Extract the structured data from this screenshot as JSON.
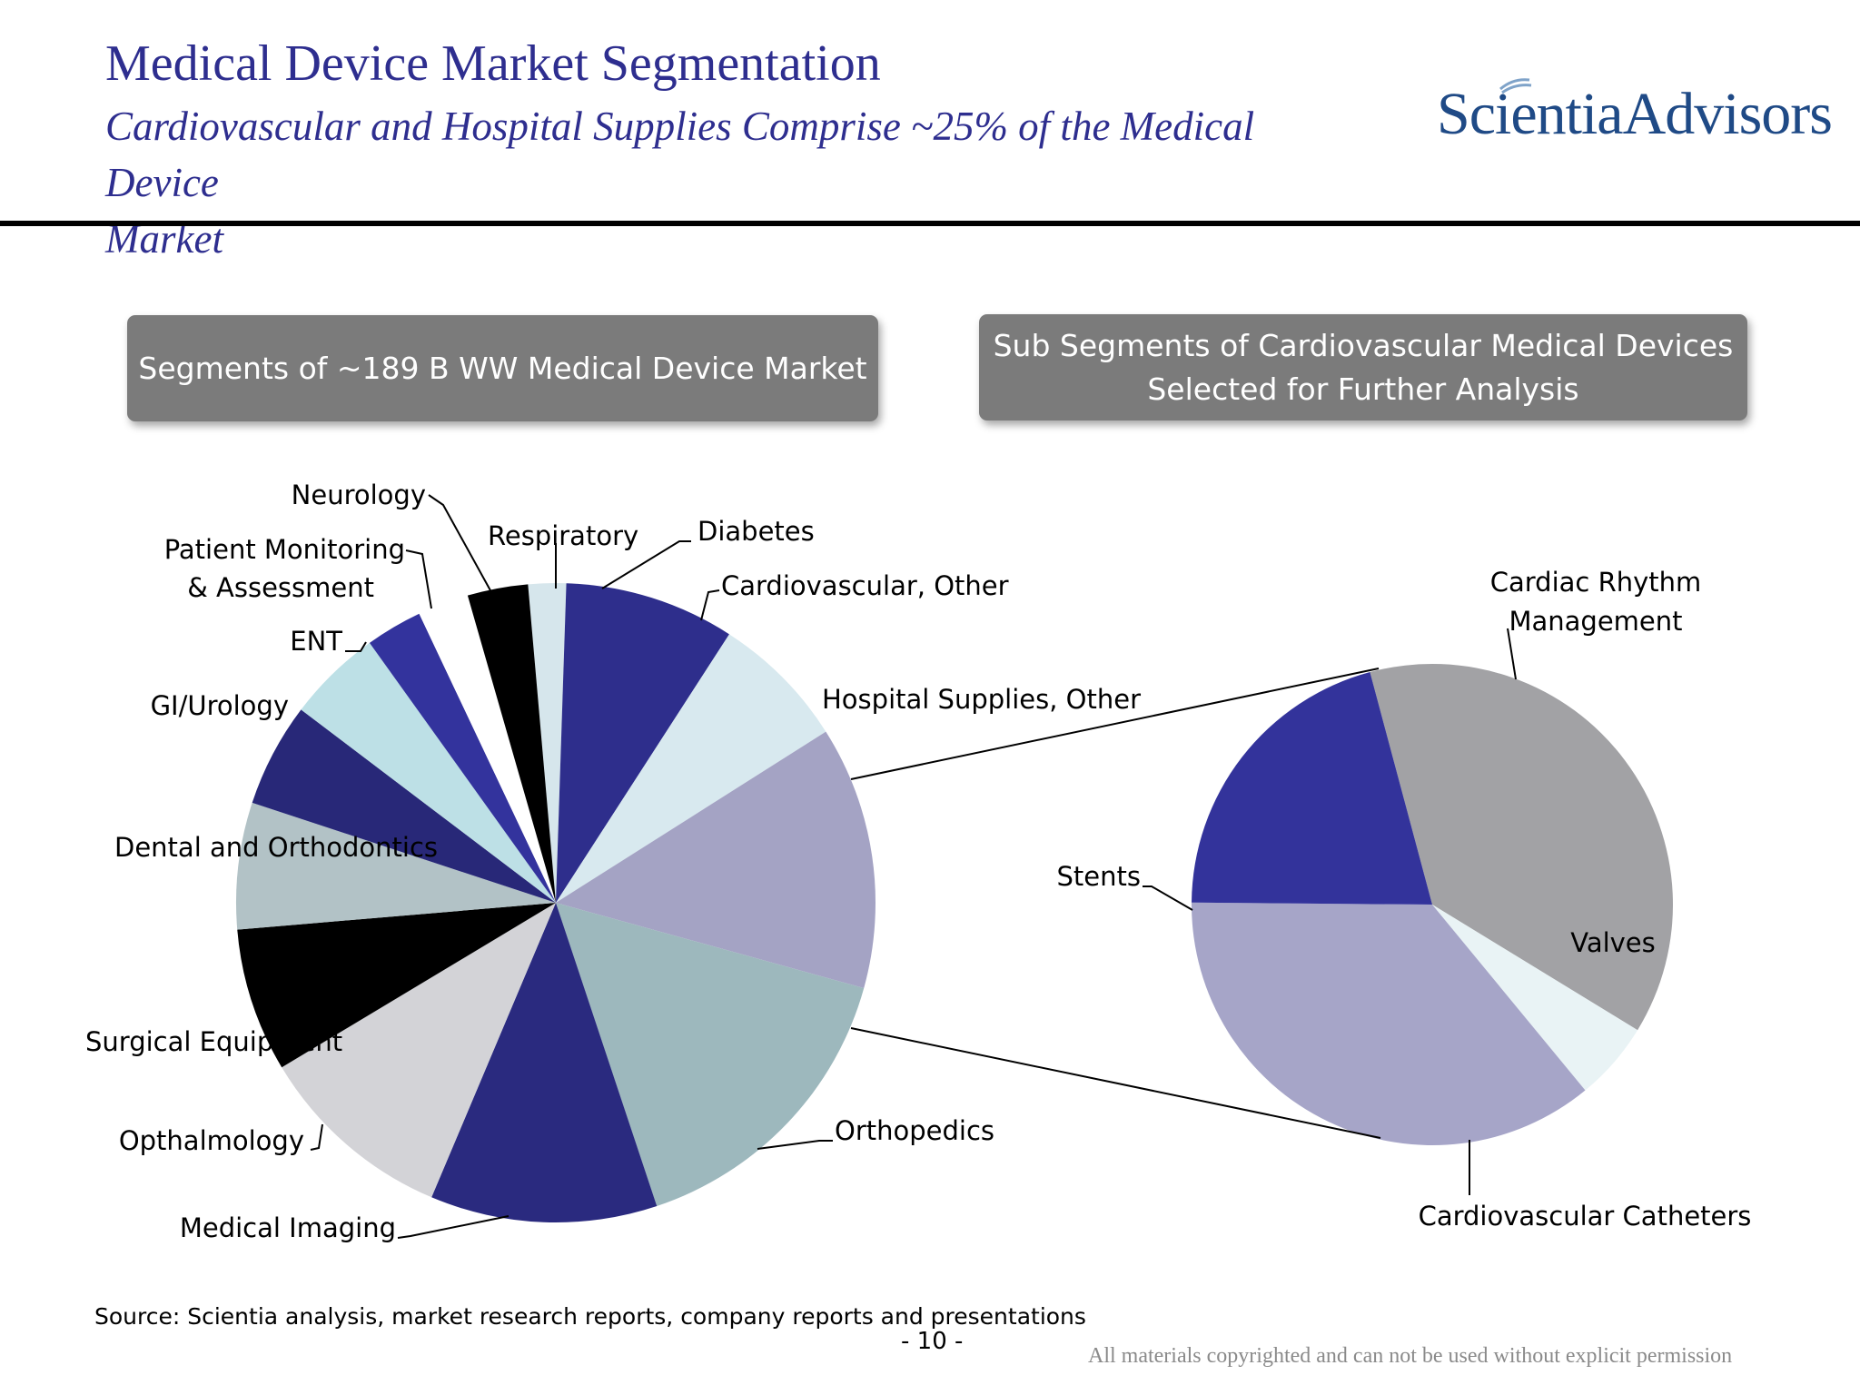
{
  "header": {
    "title": "Medical Device Market Segmentation",
    "subtitle_line1": "Cardiovascular and Hospital Supplies Comprise ~25% of the Medical Device",
    "subtitle_line2": "Market",
    "logo_text": "ScientiaAdvisors",
    "logo_color": "#1f4a86",
    "title_color": "#2e2e8f"
  },
  "boxes": {
    "left": "Segments of ~189 B WW Medical Device Market",
    "right_line1": "Sub Segments of Cardiovascular Medical Devices",
    "right_line2": "Selected for Further Analysis"
  },
  "chart_data": [
    {
      "type": "pie",
      "start_angle_deg": -5,
      "direction": "clockwise",
      "slices": [
        {
          "label": "Diabetes",
          "value": 2.0,
          "color": "#d6e6ec"
        },
        {
          "label": "Cardiovascular, Other",
          "value": 9.0,
          "color": "#2e2e8c"
        },
        {
          "label": "Hospital Supplies, Other",
          "value": 7.2,
          "color": "#d8e9ef"
        },
        {
          "label": "",
          "value": 13.9,
          "color": "#a4a3c4"
        },
        {
          "label": "Orthopedics",
          "value": 16.3,
          "color": "#9db8bd"
        },
        {
          "label": "Medical Imaging",
          "value": 12.0,
          "color": "#2a2a7f"
        },
        {
          "label": "Opthalmology",
          "value": 10.5,
          "color": "#d3d3d7"
        },
        {
          "label": "Surgical Equipment",
          "value": 7.6,
          "color": "#000000"
        },
        {
          "label": "Dental and Orthodontics",
          "value": 6.7,
          "color": "#b2c2c6"
        },
        {
          "label": "GI/Urology",
          "value": 5.5,
          "color": "#282878"
        },
        {
          "label": "ENT",
          "value": 5.0,
          "color": "#bde0e6"
        },
        {
          "label": "Patient Monitoring & Assessment",
          "value": 3.0,
          "color": "#33339d"
        },
        {
          "label": "Neurology",
          "value": 2.7,
          "color": "#ffffff"
        },
        {
          "label": "Respiratory",
          "value": 3.2,
          "color": "#000000"
        }
      ]
    },
    {
      "type": "pie",
      "start_angle_deg": -15,
      "direction": "clockwise",
      "slices": [
        {
          "label": "Cardiac Rhythm Management",
          "value": 37.9,
          "color": "#a2a2a5"
        },
        {
          "label": "Valves",
          "value": 5.3,
          "color": "#e9f3f5"
        },
        {
          "label": "Cardiovascular Catheters",
          "value": 36.1,
          "color": "#a6a5c8"
        },
        {
          "label": "Stents",
          "value": 20.7,
          "color": "#33339b"
        }
      ]
    }
  ],
  "labels_left": {
    "neurology": "Neurology",
    "pm1": "Patient Monitoring",
    "pm2": "& Assessment",
    "respiratory": "Respiratory",
    "diabetes": "Diabetes",
    "cardio_other": "Cardiovascular, Other",
    "ent": "ENT",
    "hospital": "Hospital Supplies, Other",
    "gi": "GI/Urology",
    "dental": "Dental and Orthodontics",
    "surgical": "Surgical Equipment",
    "opthalmology": "Opthalmology",
    "orthopedics": "Orthopedics",
    "imaging": "Medical Imaging"
  },
  "labels_right": {
    "crm1": "Cardiac Rhythm",
    "crm2": "Management",
    "stents": "Stents",
    "valves": "Valves",
    "catheters": "Cardiovascular Catheters"
  },
  "footer": {
    "source": "Source: Scientia analysis, market research reports, company reports and presentations",
    "page": "- 10 -",
    "copyright": "All materials copyrighted and can not be used without explicit permission"
  }
}
